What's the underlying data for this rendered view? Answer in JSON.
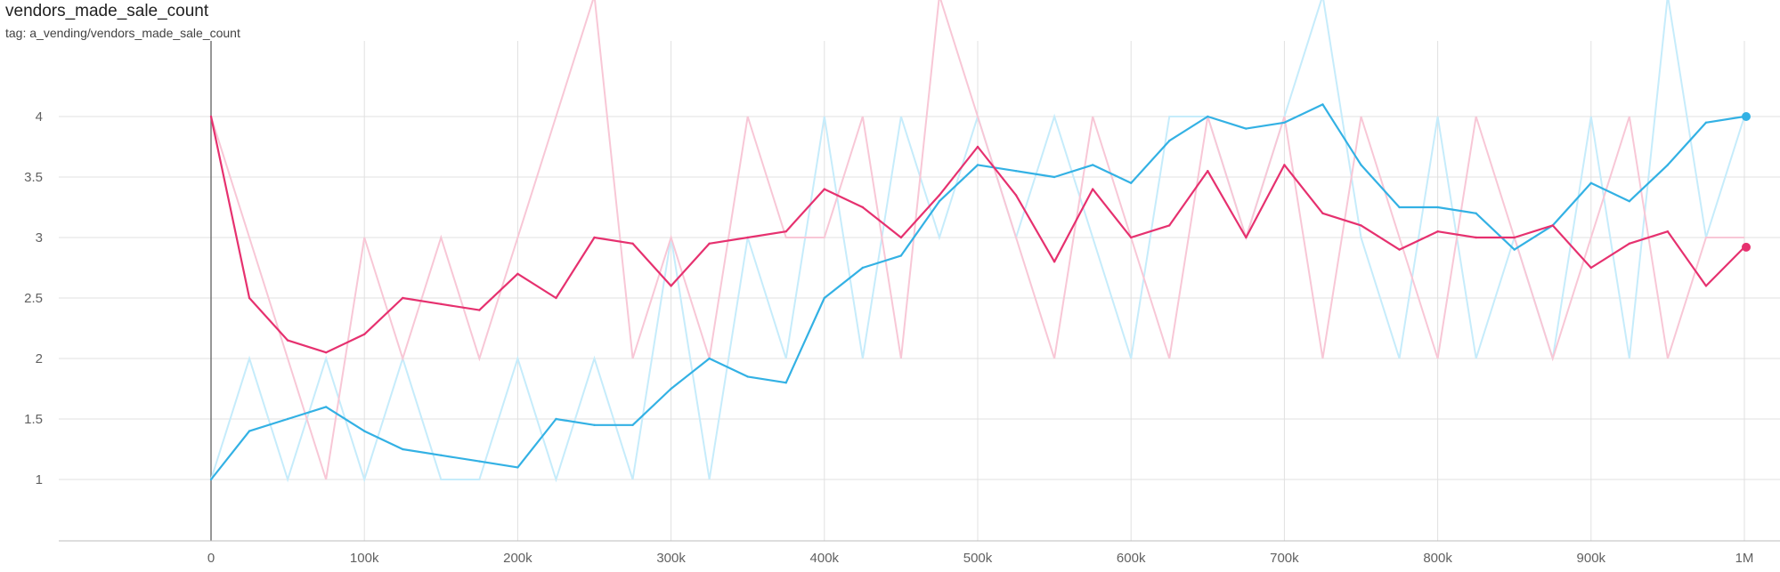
{
  "header": {
    "title": "vendors_made_sale_count",
    "tag": "tag: a_vending/vendors_made_sale_count"
  },
  "chart_data": {
    "type": "line",
    "title": "vendors_made_sale_count",
    "xlabel": "",
    "ylabel": "",
    "xlim": [
      -100000,
      1020000
    ],
    "ylim": [
      0.55,
      4.55
    ],
    "grid": true,
    "x_ticks": [
      "0",
      "100k",
      "200k",
      "300k",
      "400k",
      "500k",
      "600k",
      "700k",
      "800k",
      "900k",
      "1M"
    ],
    "y_ticks": [
      "1",
      "1.5",
      "2",
      "2.5",
      "3",
      "3.5",
      "4"
    ],
    "x": [
      0,
      25000,
      50000,
      75000,
      100000,
      125000,
      150000,
      175000,
      200000,
      225000,
      250000,
      275000,
      300000,
      325000,
      350000,
      375000,
      400000,
      425000,
      450000,
      475000,
      500000,
      525000,
      550000,
      575000,
      600000,
      625000,
      650000,
      675000,
      700000,
      725000,
      750000,
      775000,
      800000,
      825000,
      850000,
      875000,
      900000,
      925000,
      950000,
      975000,
      1000000
    ],
    "series": [
      {
        "color": "#33b1e4",
        "raw_color": "#c6ecfb",
        "values": [
          1.0,
          1.4,
          1.5,
          1.6,
          1.4,
          1.25,
          1.2,
          1.15,
          1.1,
          1.5,
          1.45,
          1.45,
          1.75,
          2.0,
          1.85,
          1.8,
          2.5,
          2.75,
          2.85,
          3.3,
          3.6,
          3.55,
          3.5,
          3.6,
          3.45,
          3.8,
          4.0,
          3.9,
          3.95,
          4.1,
          3.6,
          3.25,
          3.25,
          3.2,
          2.9,
          3.1,
          3.45,
          3.3,
          3.6,
          3.95,
          4.0
        ],
        "raw_values": [
          1,
          2,
          1,
          2,
          1,
          2,
          1,
          1,
          2,
          1,
          2,
          1,
          3,
          1,
          3,
          2,
          4,
          2,
          4,
          3,
          4,
          3,
          4,
          3,
          2,
          4,
          4,
          3,
          4,
          5,
          3,
          2,
          4,
          2,
          3,
          2,
          4,
          2,
          5,
          3,
          4
        ]
      },
      {
        "color": "#e6316f",
        "raw_color": "#f8c7d6",
        "values": [
          4.0,
          2.5,
          2.15,
          2.05,
          2.2,
          2.5,
          2.45,
          2.4,
          2.7,
          2.5,
          3.0,
          2.95,
          2.6,
          2.95,
          3.0,
          3.05,
          3.4,
          3.25,
          3.0,
          3.35,
          3.75,
          3.35,
          2.8,
          3.4,
          3.0,
          3.1,
          3.55,
          3.0,
          3.6,
          3.2,
          3.1,
          2.9,
          3.05,
          3.0,
          3.0,
          3.1,
          2.75,
          2.95,
          3.05,
          2.6,
          2.92
        ],
        "raw_values": [
          4,
          3,
          2,
          1,
          3,
          2,
          3,
          2,
          3,
          4,
          5,
          2,
          3,
          2,
          4,
          3,
          3,
          4,
          2,
          5,
          4,
          3,
          2,
          4,
          3,
          2,
          4,
          3,
          4,
          2,
          4,
          3,
          2,
          4,
          3,
          2,
          3,
          4,
          2,
          3,
          3
        ]
      }
    ],
    "end_values": [
      4.0,
      2.92
    ]
  }
}
